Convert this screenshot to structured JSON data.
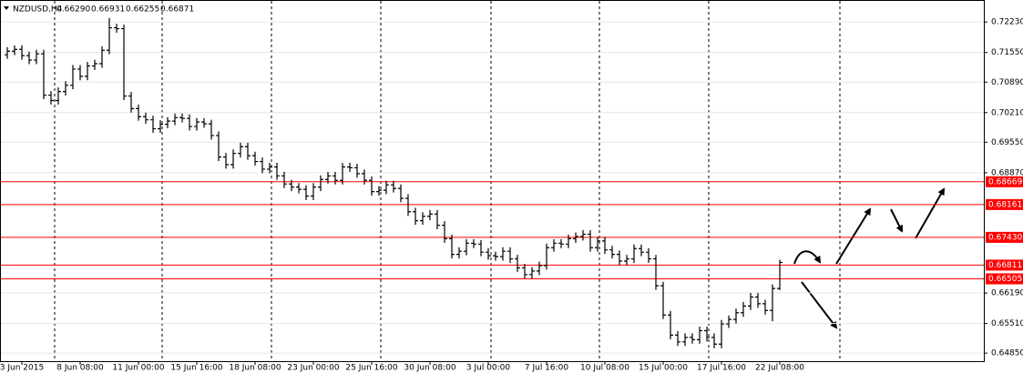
{
  "chart_data": {
    "type": "ohlc",
    "title": "NZDUSD,H4",
    "title_values": [
      {
        "value": 0.6629,
        "label": "0.66290"
      },
      {
        "value": 0.66931,
        "label": "0.66931"
      },
      {
        "value": 0.66255,
        "label": "0.66255"
      },
      {
        "value": 0.66871,
        "label": "0.66871"
      }
    ],
    "color": "#000000",
    "categories": [
      null,
      null,
      "3 Jun 2015",
      null,
      null,
      null,
      null,
      null,
      null,
      null,
      "8 Jun 08:00",
      null,
      null,
      null,
      null,
      null,
      null,
      null,
      "11 Jun 00:00",
      null,
      null,
      null,
      null,
      null,
      null,
      null,
      "15 Jun 16:00",
      null,
      null,
      null,
      null,
      null,
      null,
      null,
      "18 Jun 08:00",
      null,
      null,
      null,
      null,
      null,
      null,
      null,
      "23 Jun 00:00",
      null,
      null,
      null,
      null,
      null,
      null,
      null,
      "25 Jun 16:00",
      null,
      null,
      null,
      null,
      null,
      null,
      null,
      "30 Jun 08:00",
      null,
      null,
      null,
      null,
      null,
      null,
      null,
      "3 Jul 00:00",
      null,
      null,
      null,
      null,
      null,
      null,
      null,
      "7 Jul 16:00",
      null,
      null,
      null,
      null,
      null,
      null,
      null,
      "10 Jul 08:00",
      null,
      null,
      null,
      null,
      null,
      null,
      null,
      "15 Jul 00:00",
      null,
      null,
      null,
      null,
      null,
      null,
      null,
      "17 Jul 16:00",
      null,
      null,
      null,
      null,
      null,
      null,
      null,
      "22 Jul 08:00"
    ],
    "open": [
      0.715,
      0.7158,
      0.7162,
      0.7148,
      0.7138,
      0.7152,
      0.706,
      0.7048,
      0.7068,
      0.7082,
      0.7118,
      0.7102,
      0.7125,
      0.713,
      0.716,
      0.721,
      0.7208,
      0.7058,
      0.703,
      0.7012,
      0.7005,
      0.6985,
      0.6995,
      0.7002,
      0.701,
      0.7008,
      0.699,
      0.7,
      0.6996,
      0.697,
      0.6922,
      0.6905,
      0.693,
      0.6945,
      0.6925,
      0.6912,
      0.6895,
      0.69,
      0.688,
      0.6862,
      0.6855,
      0.685,
      0.6835,
      0.6855,
      0.6872,
      0.688,
      0.687,
      0.69,
      0.6898,
      0.6885,
      0.687,
      0.6845,
      0.6848,
      0.686,
      0.6852,
      0.683,
      0.68,
      0.678,
      0.679,
      0.6795,
      0.677,
      0.674,
      0.6705,
      0.6712,
      0.673,
      0.6728,
      0.671,
      0.6702,
      0.67,
      0.6712,
      0.6695,
      0.6675,
      0.666,
      0.6668,
      0.668,
      0.672,
      0.673,
      0.6728,
      0.674,
      0.6745,
      0.675,
      0.672,
      0.6735,
      0.6715,
      0.6705,
      0.669,
      0.6695,
      0.6718,
      0.671,
      0.6695,
      0.6635,
      0.657,
      0.6525,
      0.651,
      0.652,
      0.6515,
      0.6535,
      0.652,
      0.6505,
      0.655,
      0.656,
      0.6575,
      0.659,
      0.661,
      0.6595,
      0.658,
      0.6629
    ],
    "high": [
      0.7167,
      0.7171,
      0.7171,
      0.7157,
      0.7161,
      0.7161,
      0.7069,
      0.7077,
      0.7091,
      0.7127,
      0.7127,
      0.7134,
      0.7139,
      0.7169,
      0.7232,
      0.7219,
      0.7217,
      0.7067,
      0.7039,
      0.7021,
      0.7014,
      0.7004,
      0.7011,
      0.7019,
      0.7019,
      0.7017,
      0.7009,
      0.7009,
      0.7005,
      0.6979,
      0.6931,
      0.6939,
      0.6954,
      0.6954,
      0.6934,
      0.6921,
      0.6909,
      0.6909,
      0.6889,
      0.6871,
      0.6864,
      0.6859,
      0.6864,
      0.6881,
      0.6889,
      0.6889,
      0.6909,
      0.6909,
      0.6907,
      0.6894,
      0.6879,
      0.6857,
      0.6869,
      0.6869,
      0.6861,
      0.6839,
      0.6809,
      0.6799,
      0.6804,
      0.6804,
      0.6779,
      0.6749,
      0.6721,
      0.6739,
      0.6739,
      0.6737,
      0.6719,
      0.6711,
      0.6721,
      0.6721,
      0.6704,
      0.6684,
      0.6677,
      0.6689,
      0.6729,
      0.6739,
      0.6739,
      0.6749,
      0.6754,
      0.6759,
      0.6759,
      0.6744,
      0.6744,
      0.6724,
      0.6714,
      0.6704,
      0.6727,
      0.6727,
      0.6719,
      0.6704,
      0.6644,
      0.6579,
      0.6534,
      0.6529,
      0.6529,
      0.6544,
      0.6544,
      0.6529,
      0.6559,
      0.6569,
      0.6584,
      0.6599,
      0.6619,
      0.6619,
      0.6604,
      0.6638,
      0.66931
    ],
    "low": [
      0.7141,
      0.7149,
      0.7139,
      0.7129,
      0.7129,
      0.7051,
      0.7039,
      0.7039,
      0.7059,
      0.7073,
      0.7093,
      0.7093,
      0.7116,
      0.7121,
      0.7151,
      0.7199,
      0.7049,
      0.7021,
      0.7003,
      0.6996,
      0.6976,
      0.6976,
      0.6986,
      0.6993,
      0.6999,
      0.6981,
      0.6981,
      0.6987,
      0.6961,
      0.6913,
      0.6896,
      0.6896,
      0.6921,
      0.6916,
      0.6903,
      0.6886,
      0.6886,
      0.6871,
      0.6853,
      0.6846,
      0.6841,
      0.6826,
      0.6826,
      0.6846,
      0.6863,
      0.6861,
      0.6861,
      0.6889,
      0.6876,
      0.6861,
      0.6836,
      0.6836,
      0.6839,
      0.6843,
      0.6821,
      0.6791,
      0.6771,
      0.6771,
      0.6781,
      0.6761,
      0.6731,
      0.6696,
      0.6696,
      0.6703,
      0.6719,
      0.6701,
      0.6693,
      0.6691,
      0.6691,
      0.6686,
      0.6666,
      0.6651,
      0.6651,
      0.6659,
      0.6671,
      0.6711,
      0.6719,
      0.6719,
      0.6731,
      0.6736,
      0.6711,
      0.6711,
      0.6706,
      0.6696,
      0.6681,
      0.6681,
      0.6686,
      0.6701,
      0.6686,
      0.6626,
      0.6561,
      0.6516,
      0.6501,
      0.6501,
      0.6506,
      0.6506,
      0.6511,
      0.6496,
      0.6496,
      0.6541,
      0.6551,
      0.6566,
      0.6581,
      0.6586,
      0.6571,
      0.6556,
      0.66255
    ],
    "close": [
      0.7158,
      0.7162,
      0.7148,
      0.7138,
      0.7152,
      0.706,
      0.7048,
      0.7068,
      0.7082,
      0.7118,
      0.7102,
      0.7125,
      0.713,
      0.716,
      0.721,
      0.7208,
      0.7058,
      0.703,
      0.7012,
      0.7005,
      0.6985,
      0.6995,
      0.7002,
      0.701,
      0.7008,
      0.699,
      0.7,
      0.6996,
      0.697,
      0.6922,
      0.6905,
      0.693,
      0.6945,
      0.6925,
      0.6912,
      0.6895,
      0.69,
      0.688,
      0.6862,
      0.6855,
      0.685,
      0.6835,
      0.6855,
      0.6872,
      0.688,
      0.687,
      0.69,
      0.6898,
      0.6885,
      0.687,
      0.6845,
      0.6848,
      0.686,
      0.6852,
      0.683,
      0.68,
      0.678,
      0.679,
      0.6795,
      0.677,
      0.674,
      0.6705,
      0.6712,
      0.673,
      0.6728,
      0.671,
      0.6702,
      0.67,
      0.6712,
      0.6695,
      0.6675,
      0.666,
      0.6668,
      0.668,
      0.672,
      0.673,
      0.6728,
      0.674,
      0.6745,
      0.675,
      0.672,
      0.6735,
      0.6715,
      0.6705,
      0.669,
      0.6695,
      0.6718,
      0.671,
      0.6695,
      0.6635,
      0.657,
      0.6525,
      0.651,
      0.652,
      0.6515,
      0.6535,
      0.652,
      0.6505,
      0.655,
      0.656,
      0.6575,
      0.659,
      0.661,
      0.6595,
      0.658,
      0.6629,
      0.66871
    ],
    "ylim": [
      0.6465,
      0.7272
    ],
    "yticks": [
      {
        "value": 0.7223,
        "label": "0.72230"
      },
      {
        "value": 0.7155,
        "label": "0.71550"
      },
      {
        "value": 0.7089,
        "label": "0.70890"
      },
      {
        "value": 0.7021,
        "label": "0.70210"
      },
      {
        "value": 0.6955,
        "label": "0.69550"
      },
      {
        "value": 0.6887,
        "label": "0.68870"
      },
      {
        "value": 0.6619,
        "label": "0.66190"
      },
      {
        "value": 0.6551,
        "label": "0.65510"
      },
      {
        "value": 0.6485,
        "label": "0.64850"
      }
    ],
    "levels": [
      0.68669,
      0.68161,
      {
        "value": 0.6743,
        "label": "0.67430"
      },
      0.66811,
      0.66505
    ],
    "level_color": "#ff0000",
    "grid": true
  }
}
